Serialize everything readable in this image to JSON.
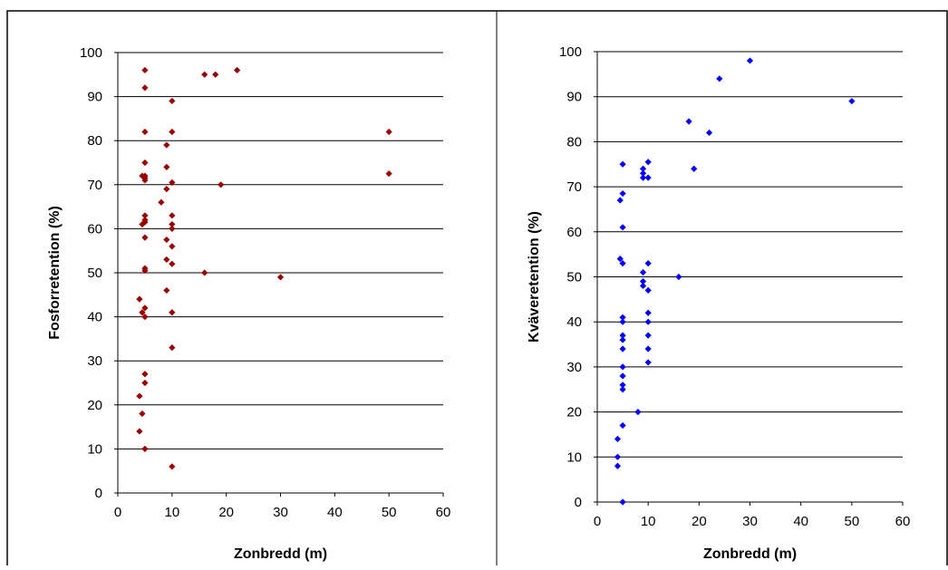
{
  "colors": {
    "phosphorus": "#990000",
    "nitrogen": "#0000ff",
    "grid": "#000000"
  },
  "chart_data": [
    {
      "type": "scatter",
      "title": "",
      "xlabel": "Zonbredd (m)",
      "ylabel": "Fosforretention (%)",
      "xlim": [
        0,
        60
      ],
      "ylim": [
        0,
        100
      ],
      "x_ticks": [
        0,
        10,
        20,
        30,
        40,
        50,
        60
      ],
      "y_ticks": [
        0,
        10,
        20,
        30,
        40,
        50,
        60,
        70,
        80,
        90,
        100
      ],
      "grid": "horizontal major",
      "legend": "none",
      "marker": "diamond",
      "color": "#990000",
      "points": [
        [
          5,
          96
        ],
        [
          5,
          92
        ],
        [
          5,
          82
        ],
        [
          5,
          75
        ],
        [
          5,
          72
        ],
        [
          5,
          71.5
        ],
        [
          5,
          71
        ],
        [
          4.5,
          72
        ],
        [
          5,
          63
        ],
        [
          5,
          62
        ],
        [
          5,
          61.5
        ],
        [
          4.5,
          61
        ],
        [
          5,
          58
        ],
        [
          5,
          51
        ],
        [
          5,
          50.5
        ],
        [
          4,
          44
        ],
        [
          5,
          42
        ],
        [
          4.5,
          41
        ],
        [
          5,
          40
        ],
        [
          5,
          27
        ],
        [
          5,
          25
        ],
        [
          4,
          22
        ],
        [
          4.5,
          18
        ],
        [
          4,
          14
        ],
        [
          5,
          10
        ],
        [
          10,
          89
        ],
        [
          10,
          82
        ],
        [
          9,
          79
        ],
        [
          9,
          74
        ],
        [
          10,
          70.5
        ],
        [
          9,
          69
        ],
        [
          8,
          66
        ],
        [
          10,
          63
        ],
        [
          10,
          61
        ],
        [
          10,
          60
        ],
        [
          9,
          57.5
        ],
        [
          10,
          56
        ],
        [
          9,
          53
        ],
        [
          10,
          52
        ],
        [
          9,
          46
        ],
        [
          10,
          41
        ],
        [
          10,
          33
        ],
        [
          10,
          6
        ],
        [
          16,
          95
        ],
        [
          18,
          95
        ],
        [
          22,
          96
        ],
        [
          19,
          70
        ],
        [
          16,
          50
        ],
        [
          30,
          49
        ],
        [
          50,
          82
        ],
        [
          50,
          72.5
        ]
      ]
    },
    {
      "type": "scatter",
      "title": "",
      "xlabel": "Zonbredd (m)",
      "ylabel": "Kväveretention (%)",
      "xlim": [
        0,
        60
      ],
      "ylim": [
        0,
        100
      ],
      "x_ticks": [
        0,
        10,
        20,
        30,
        40,
        50,
        60
      ],
      "y_ticks": [
        0,
        10,
        20,
        30,
        40,
        50,
        60,
        70,
        80,
        90,
        100
      ],
      "grid": "horizontal major",
      "legend": "none",
      "marker": "diamond",
      "color": "#0000ff",
      "points": [
        [
          5,
          75
        ],
        [
          5,
          68.5
        ],
        [
          4.5,
          67
        ],
        [
          5,
          61
        ],
        [
          4.5,
          54
        ],
        [
          5,
          53
        ],
        [
          5,
          41
        ],
        [
          5,
          40
        ],
        [
          5,
          37
        ],
        [
          5,
          36
        ],
        [
          5,
          34
        ],
        [
          5,
          30
        ],
        [
          5,
          28
        ],
        [
          5,
          26
        ],
        [
          5,
          25
        ],
        [
          5,
          17
        ],
        [
          4,
          14
        ],
        [
          4,
          10
        ],
        [
          4,
          8
        ],
        [
          5,
          0
        ],
        [
          9,
          74
        ],
        [
          9,
          73
        ],
        [
          9,
          72
        ],
        [
          10,
          75.5
        ],
        [
          10,
          72
        ],
        [
          9,
          51
        ],
        [
          9,
          49
        ],
        [
          9,
          48
        ],
        [
          10,
          53
        ],
        [
          10,
          47
        ],
        [
          10,
          42
        ],
        [
          10,
          40
        ],
        [
          10,
          37
        ],
        [
          10,
          34
        ],
        [
          10,
          31
        ],
        [
          8,
          20
        ],
        [
          16,
          50
        ],
        [
          18,
          84.5
        ],
        [
          22,
          82
        ],
        [
          19,
          74
        ],
        [
          24,
          94
        ],
        [
          30,
          98
        ],
        [
          50,
          89
        ]
      ]
    }
  ]
}
